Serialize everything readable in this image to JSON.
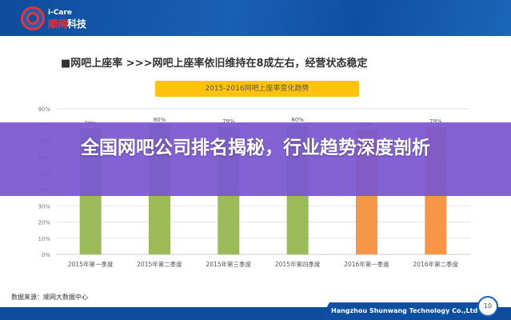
{
  "header": {
    "logo_en": "i-Care",
    "logo_cn_red": "顺网",
    "logo_cn": "科技"
  },
  "slide_title": "■网吧上座率   >>>网吧上座率依旧维持在8成左右，经营状态稳定",
  "chart_data": {
    "type": "bar",
    "title": "2015-2016网吧上座率变化趋势",
    "categories": [
      "2015年第一季度",
      "2015年第二季度",
      "2015年第三季度",
      "2015年第四季度",
      "2016年第一季度",
      "2016年第二季度"
    ],
    "values": [
      78,
      80,
      79,
      80,
      77,
      79
    ],
    "data_labels": [
      "78%",
      "80%",
      "79%",
      "80%",
      "77%",
      "79%"
    ],
    "colors": [
      "#9bbb59",
      "#9bbb59",
      "#9bbb59",
      "#9bbb59",
      "#f79646",
      "#f79646"
    ],
    "ylim": [
      0,
      90
    ],
    "yticks": [
      "0%",
      "10%",
      "20%",
      "30%",
      "40%",
      "50%",
      "60%",
      "70%",
      "80%",
      "90%"
    ],
    "grid": true,
    "xlabel": "",
    "ylabel": ""
  },
  "source": "数据来源：顺网大数据中心",
  "footer": {
    "company": "Hangzhou Shunwang Technology Co.,Ltd",
    "page": "10"
  },
  "banner": {
    "title": "全国网吧公司排名揭秘，行业趋势深度剖析",
    "color": "#7856d0"
  }
}
